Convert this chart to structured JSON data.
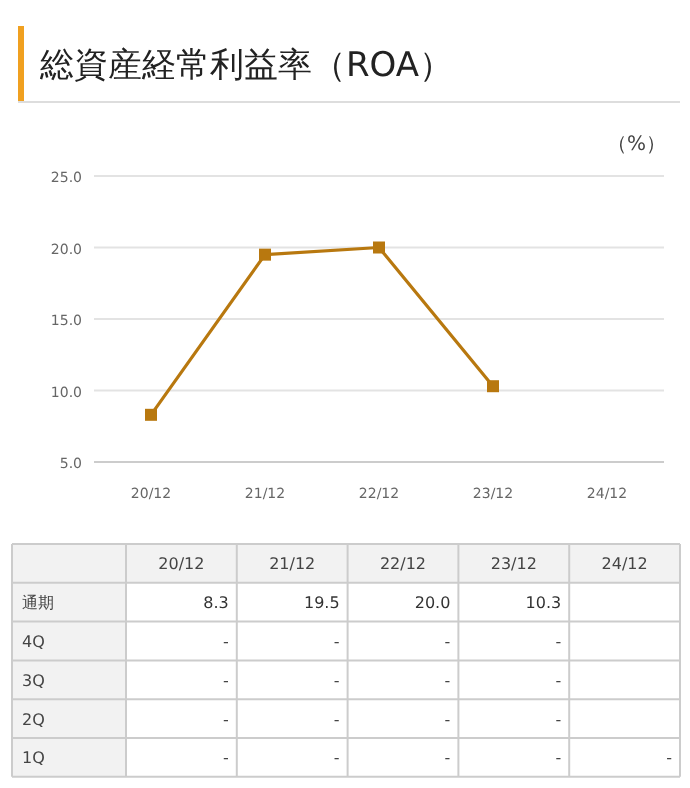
{
  "chart_data": {
    "type": "line",
    "title": "総資産経常利益率（ROA）",
    "ylabel": "（%）",
    "categories": [
      "20/12",
      "21/12",
      "22/12",
      "23/12",
      "24/12"
    ],
    "series": [
      {
        "name": "通期",
        "color": "#b8780f",
        "values": [
          8.3,
          19.5,
          20.0,
          10.3,
          null
        ],
        "value_labels": [
          "8.3",
          "19.5",
          "20.0",
          "10.3",
          null
        ]
      }
    ],
    "ylim": [
      5,
      25
    ],
    "yticks": [
      {
        "value": 5,
        "label": "5.0"
      },
      {
        "value": 10,
        "label": "10.0"
      },
      {
        "value": 15,
        "label": "15.0"
      },
      {
        "value": 20,
        "label": "20.0"
      },
      {
        "value": 25,
        "label": "25.0"
      }
    ],
    "grid": "y",
    "marker": "square",
    "legend": false,
    "annotations": [
      "4Q",
      "3Q",
      "2Q",
      "1Q",
      "-"
    ]
  }
}
